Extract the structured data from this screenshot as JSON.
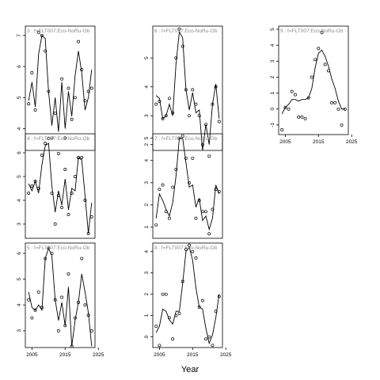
{
  "xlabel": "Year",
  "colors": {
    "line": "#000000",
    "point": "#000000",
    "frame": "#000000",
    "title": "#8a8a8a"
  },
  "chart_data": [
    {
      "type": "line",
      "title": "3 : f=FLT007:Eco-NoRu-Ob",
      "xlim": [
        2003,
        2024
      ],
      "ylim": [
        3.3,
        7.3
      ],
      "yticks": [
        4,
        5,
        6,
        7
      ],
      "xticks": [],
      "show_xticklabels": false,
      "x": [
        2004,
        2005,
        2006,
        2007,
        2008,
        2009,
        2010,
        2011,
        2012,
        2013,
        2014,
        2015,
        2016,
        2017,
        2018,
        2019,
        2020,
        2021,
        2022,
        2023
      ],
      "points": [
        4.8,
        5.8,
        4.6,
        7.1,
        7.0,
        6.5,
        5.2,
        3.7,
        4.5,
        3.2,
        5.6,
        3.7,
        5.3,
        4.3,
        5.0,
        6.8,
        5.9,
        4.9,
        5.2,
        5.3
      ],
      "line": [
        4.9,
        5.5,
        4.7,
        6.4,
        7.0,
        6.9,
        5.2,
        4.1,
        5.0,
        3.9,
        5.5,
        4.0,
        5.2,
        4.4,
        5.7,
        6.5,
        5.8,
        4.6,
        5.0,
        5.9
      ]
    },
    {
      "type": "line",
      "title": "6 : f=FLT007:Eco-NoRu-Ob",
      "xlim": [
        2003,
        2024
      ],
      "ylim": [
        1.8,
        6.1
      ],
      "yticks": [
        2,
        3,
        4,
        5
      ],
      "xticks": [],
      "show_xticklabels": false,
      "x": [
        2004,
        2005,
        2006,
        2007,
        2008,
        2009,
        2010,
        2011,
        2012,
        2013,
        2014,
        2015,
        2016,
        2017,
        2018,
        2019,
        2020,
        2021,
        2022,
        2023
      ],
      "points": [
        3.4,
        3.5,
        2.9,
        3.0,
        3.6,
        3.1,
        5.0,
        6.0,
        5.4,
        3.9,
        3.0,
        3.9,
        3.4,
        3.0,
        2.0,
        2.7,
        1.6,
        3.4,
        4.0,
        2.8
      ],
      "line": [
        3.7,
        3.6,
        2.9,
        3.0,
        3.4,
        3.0,
        4.8,
        5.9,
        5.7,
        3.9,
        3.2,
        3.8,
        3.1,
        3.2,
        1.8,
        2.7,
        2.0,
        3.4,
        4.1,
        2.9
      ]
    },
    {
      "type": "line",
      "title": "9 : f=FLT007:Eco-NoRu-Ob",
      "xlim": [
        2003,
        2024
      ],
      "ylim": [
        -1.6,
        5.2
      ],
      "yticks": [
        -1,
        0,
        1,
        2,
        3,
        4,
        5
      ],
      "xticks": [
        2005,
        2015,
        2025
      ],
      "show_xticklabels": true,
      "x": [
        2004,
        2005,
        2006,
        2007,
        2008,
        2009,
        2010,
        2011,
        2012,
        2013,
        2014,
        2015,
        2016,
        2017,
        2018,
        2019,
        2020,
        2021,
        2022,
        2023
      ],
      "points": [
        -1.3,
        0.1,
        0.0,
        1.1,
        0.9,
        -0.5,
        -0.5,
        -0.6,
        0.7,
        2.0,
        3.1,
        3.8,
        4.8,
        2.8,
        2.4,
        0.4,
        0.4,
        0.0,
        -1.0,
        0.0
      ],
      "line": [
        -0.3,
        0.1,
        0.3,
        0.6,
        0.6,
        0.5,
        0.6,
        0.6,
        0.7,
        1.3,
        2.6,
        3.5,
        3.7,
        3.3,
        2.7,
        1.9,
        1.3,
        0.5,
        0.0,
        0.0
      ]
    },
    {
      "type": "line",
      "title": "4 : f=FLT007:Eco-NoRu-Ob",
      "xlim": [
        2003,
        2024
      ],
      "ylim": [
        2.4,
        6.8
      ],
      "yticks": [
        3,
        4,
        5,
        6
      ],
      "xticks": [],
      "show_xticklabels": false,
      "x": [
        2004,
        2005,
        2006,
        2007,
        2008,
        2009,
        2010,
        2011,
        2012,
        2013,
        2014,
        2015,
        2016,
        2017,
        2018,
        2019,
        2020,
        2021,
        2022,
        2023
      ],
      "points": [
        4.3,
        4.6,
        4.8,
        4.5,
        5.9,
        6.4,
        6.6,
        4.3,
        3.0,
        4.2,
        3.7,
        5.3,
        3.4,
        4.3,
        5.0,
        5.8,
        5.8,
        4.0,
        2.6,
        3.3
      ],
      "line": [
        4.7,
        4.4,
        4.8,
        4.3,
        5.5,
        6.3,
        6.4,
        4.6,
        3.5,
        4.4,
        3.8,
        4.9,
        3.6,
        4.5,
        4.4,
        5.8,
        5.7,
        4.2,
        2.6,
        3.9
      ]
    },
    {
      "type": "line",
      "title": "7 : f=FLT007:Eco-NoRu-Ob",
      "xlim": [
        2003,
        2024
      ],
      "ylim": [
        0.5,
        5.2
      ],
      "yticks": [
        1,
        2,
        3,
        4,
        5
      ],
      "xticks": [],
      "show_xticklabels": false,
      "x": [
        2004,
        2005,
        2006,
        2007,
        2008,
        2009,
        2010,
        2011,
        2012,
        2013,
        2014,
        2015,
        2016,
        2017,
        2018,
        2019,
        2020,
        2021,
        2022,
        2023
      ],
      "points": [
        1.1,
        2.7,
        2.9,
        1.7,
        1.4,
        2.8,
        3.6,
        5.0,
        5.1,
        4.1,
        3.0,
        4.1,
        1.4,
        2.2,
        1.7,
        1.7,
        0.7,
        1.8,
        2.7,
        2.6
      ],
      "line": [
        1.4,
        2.5,
        2.2,
        1.8,
        1.5,
        2.1,
        3.3,
        5.0,
        5.0,
        3.9,
        2.8,
        2.9,
        1.9,
        2.3,
        1.3,
        1.5,
        0.9,
        1.4,
        2.9,
        2.5
      ]
    },
    {
      "type": "line",
      "title": "5 : f=FLT007:Eco-NoRu-Ob",
      "xlim": [
        2003,
        2024
      ],
      "ylim": [
        2.35,
        6.4
      ],
      "yticks": [
        3,
        4,
        5,
        6
      ],
      "xticks": [
        2005,
        2015,
        2025
      ],
      "show_xticklabels": true,
      "x": [
        2004,
        2005,
        2006,
        2007,
        2008,
        2009,
        2010,
        2011,
        2012,
        2013,
        2014,
        2015,
        2016,
        2017,
        2018,
        2019,
        2020,
        2021,
        2022,
        2023
      ],
      "points": [
        4.2,
        3.5,
        3.8,
        4.5,
        3.9,
        5.8,
        6.2,
        6.0,
        4.2,
        3.0,
        4.3,
        3.2,
        5.2,
        2.4,
        3.5,
        4.1,
        5.8,
        4.0,
        3.6,
        3.0
      ],
      "line": [
        4.5,
        3.9,
        3.8,
        4.0,
        3.8,
        5.8,
        6.2,
        5.9,
        4.2,
        3.4,
        4.1,
        3.2,
        4.7,
        2.4,
        3.4,
        4.1,
        5.2,
        4.5,
        3.7,
        2.4
      ]
    },
    {
      "type": "line",
      "title": "8 : f=FLT007:Eco-NoRu-Ob",
      "xlim": [
        2003,
        2024
      ],
      "ylim": [
        -0.5,
        4.4
      ],
      "yticks": [
        0,
        1,
        2,
        3,
        4
      ],
      "xticks": [
        2005,
        2015,
        2025
      ],
      "show_xticklabels": true,
      "x": [
        2004,
        2005,
        2006,
        2007,
        2008,
        2009,
        2010,
        2011,
        2012,
        2013,
        2014,
        2015,
        2016,
        2017,
        2018,
        2019,
        2020,
        2021,
        2022,
        2023
      ],
      "points": [
        0.5,
        -0.4,
        2.0,
        2.0,
        0.9,
        -0.1,
        1.0,
        1.1,
        2.6,
        4.1,
        4.3,
        4.0,
        3.7,
        1.4,
        1.7,
        -0.1,
        0.0,
        -0.4,
        1.2,
        1.9
      ],
      "line": [
        0.2,
        0.5,
        1.3,
        1.2,
        0.8,
        0.6,
        1.2,
        1.2,
        2.5,
        4.0,
        4.2,
        3.6,
        2.3,
        1.4,
        1.3,
        0.4,
        -0.3,
        0.1,
        0.9,
        2.0
      ]
    }
  ]
}
